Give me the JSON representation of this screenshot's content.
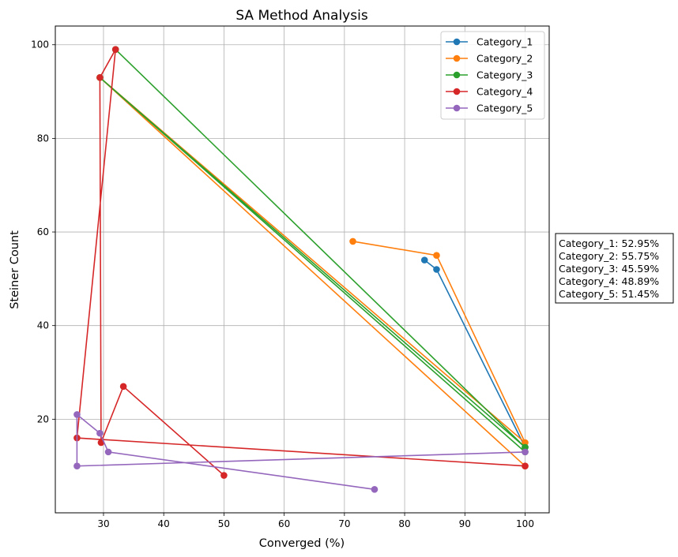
{
  "chart_data": {
    "type": "line",
    "title": "SA Method Analysis",
    "xlabel": "Converged (%)",
    "ylabel": "Steiner Count",
    "xlim": [
      22,
      104
    ],
    "ylim": [
      0,
      104
    ],
    "xticks": [
      30,
      40,
      50,
      60,
      70,
      80,
      90,
      100
    ],
    "yticks": [
      20,
      40,
      60,
      80,
      100
    ],
    "grid": true,
    "legend_position": "top-right",
    "series": [
      {
        "name": "Category_1",
        "color": "#1f77b4",
        "x": [
          83.3,
          85.3,
          100
        ],
        "y": [
          54,
          52,
          14
        ]
      },
      {
        "name": "Category_2",
        "color": "#ff7f0e",
        "x": [
          71.4,
          85.3,
          100,
          29.4,
          100
        ],
        "y": [
          58,
          55,
          15,
          93,
          10
        ]
      },
      {
        "name": "Category_3",
        "color": "#2ca02c",
        "x": [
          32.0,
          100,
          29.4,
          100
        ],
        "y": [
          99,
          14,
          93,
          13
        ]
      },
      {
        "name": "Category_4",
        "color": "#d62728",
        "x": [
          50,
          33.3,
          29.6,
          29.4,
          32.0,
          25.6,
          100
        ],
        "y": [
          8,
          27,
          15,
          93,
          99,
          16,
          10
        ]
      },
      {
        "name": "Category_5",
        "color": "#9467bd",
        "x": [
          75,
          30.8,
          29.4,
          25.6,
          25.6,
          100
        ],
        "y": [
          5,
          13,
          17,
          21,
          10,
          13
        ]
      }
    ],
    "annotation": [
      "Category_1: 52.95%",
      "Category_2: 55.75%",
      "Category_3: 45.59%",
      "Category_4: 48.89%",
      "Category_5: 51.45%"
    ]
  }
}
